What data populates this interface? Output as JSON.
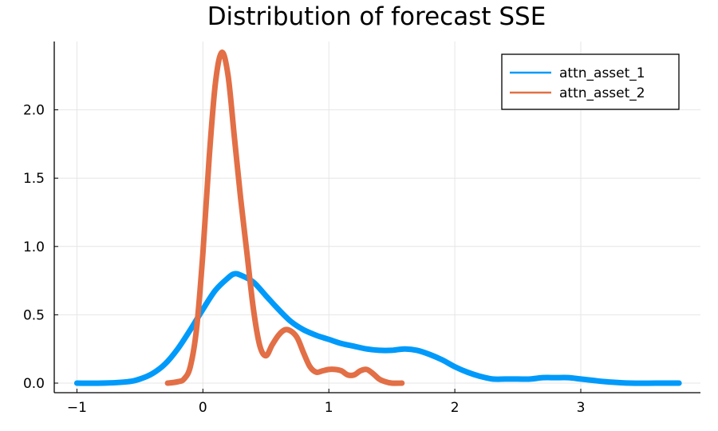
{
  "chart_data": {
    "type": "line",
    "title": "Distribution of forecast SSE",
    "xlabel": "",
    "ylabel": "",
    "xlim": [
      -1.18,
      3.95
    ],
    "ylim": [
      -0.07,
      2.5
    ],
    "x_ticks": [
      -1,
      0,
      1,
      2,
      3
    ],
    "x_tick_labels": [
      "−1",
      "0",
      "1",
      "2",
      "3"
    ],
    "y_ticks": [
      0.0,
      0.5,
      1.0,
      1.5,
      2.0
    ],
    "y_tick_labels": [
      "0.0",
      "0.5",
      "1.0",
      "1.5",
      "2.0"
    ],
    "grid": true,
    "legend_position": "top-right",
    "series": [
      {
        "name": "attn_asset_1",
        "color": "#009AFA",
        "x": [
          -1.0,
          -0.8,
          -0.6,
          -0.5,
          -0.4,
          -0.3,
          -0.2,
          -0.1,
          0.0,
          0.1,
          0.2,
          0.25,
          0.3,
          0.4,
          0.5,
          0.6,
          0.7,
          0.8,
          0.9,
          1.0,
          1.1,
          1.2,
          1.3,
          1.4,
          1.5,
          1.6,
          1.7,
          1.8,
          1.9,
          2.0,
          2.1,
          2.2,
          2.3,
          2.4,
          2.5,
          2.6,
          2.7,
          2.8,
          2.9,
          3.0,
          3.1,
          3.2,
          3.4,
          3.6,
          3.78
        ],
        "y": [
          0.0,
          0.0,
          0.01,
          0.03,
          0.07,
          0.14,
          0.25,
          0.39,
          0.54,
          0.68,
          0.77,
          0.8,
          0.79,
          0.74,
          0.64,
          0.54,
          0.45,
          0.39,
          0.35,
          0.32,
          0.29,
          0.27,
          0.25,
          0.24,
          0.24,
          0.25,
          0.24,
          0.21,
          0.17,
          0.12,
          0.08,
          0.05,
          0.03,
          0.03,
          0.03,
          0.03,
          0.04,
          0.04,
          0.04,
          0.03,
          0.02,
          0.01,
          0.0,
          0.0,
          0.0
        ]
      },
      {
        "name": "attn_asset_2",
        "color": "#E26F46",
        "x": [
          -0.28,
          -0.2,
          -0.15,
          -0.1,
          -0.05,
          0.0,
          0.05,
          0.1,
          0.15,
          0.2,
          0.25,
          0.3,
          0.35,
          0.4,
          0.45,
          0.5,
          0.55,
          0.6,
          0.65,
          0.7,
          0.75,
          0.8,
          0.85,
          0.9,
          0.95,
          1.0,
          1.05,
          1.1,
          1.15,
          1.2,
          1.25,
          1.3,
          1.35,
          1.4,
          1.45,
          1.5,
          1.58
        ],
        "y": [
          0.0,
          0.01,
          0.03,
          0.12,
          0.4,
          0.95,
          1.65,
          2.2,
          2.42,
          2.25,
          1.8,
          1.35,
          0.95,
          0.55,
          0.28,
          0.2,
          0.28,
          0.35,
          0.39,
          0.38,
          0.33,
          0.22,
          0.12,
          0.08,
          0.09,
          0.1,
          0.1,
          0.09,
          0.06,
          0.06,
          0.09,
          0.1,
          0.07,
          0.03,
          0.01,
          0.0,
          0.0
        ]
      }
    ]
  }
}
